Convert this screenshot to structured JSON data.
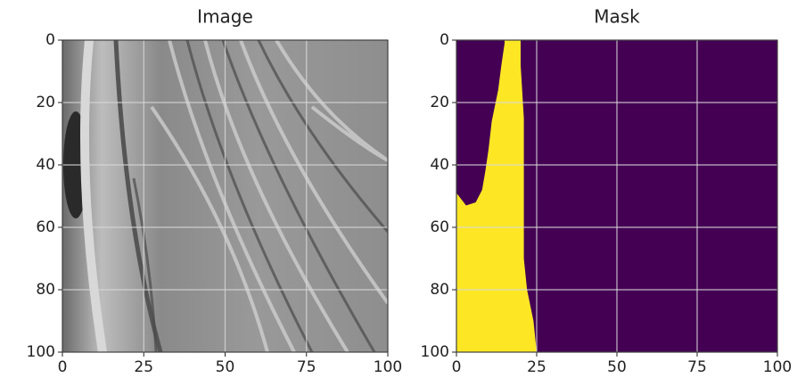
{
  "chart_data": [
    {
      "type": "image",
      "title": "Image",
      "xlim": [
        0,
        100
      ],
      "ylim": [
        100,
        0
      ],
      "xticks": [
        0,
        25,
        50,
        75,
        100
      ],
      "yticks": [
        0,
        20,
        40,
        60,
        80,
        100
      ],
      "grid": true
    },
    {
      "type": "image",
      "title": "Mask",
      "xlim": [
        0,
        100
      ],
      "ylim": [
        100,
        0
      ],
      "xticks": [
        0,
        25,
        50,
        75,
        100
      ],
      "yticks": [
        0,
        20,
        40,
        60,
        80,
        100
      ],
      "grid": true
    }
  ]
}
